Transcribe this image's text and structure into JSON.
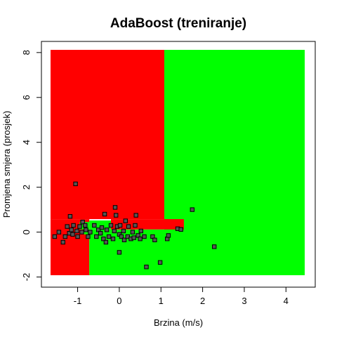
{
  "chart_data": {
    "type": "scatter",
    "title": "AdaBoost (treniranje)",
    "xlabel": "Brzina (m/s)",
    "ylabel": "Promjena smjera (prosjek)",
    "xlim": [
      -1.65,
      4.45
    ],
    "ylim": [
      -1.92,
      8.12
    ],
    "x_ticks": [
      -1,
      0,
      1,
      2,
      3,
      4
    ],
    "y_ticks": [
      -2,
      0,
      2,
      4,
      6,
      8
    ],
    "colors": {
      "region_red": "#ff0000",
      "region_green": "#00ff00",
      "point_fill": "#555555",
      "point_edge": "#000000"
    },
    "decision_regions": [
      {
        "class": "red",
        "x": [
          -1.65,
          1.08
        ],
        "y": [
          0.58,
          8.12
        ]
      },
      {
        "class": "green",
        "x": [
          1.08,
          4.45
        ],
        "y": [
          -1.92,
          8.12
        ]
      },
      {
        "class": "red",
        "x": [
          -1.65,
          -0.72
        ],
        "y": [
          -1.92,
          0.58
        ]
      },
      {
        "class": "green",
        "x": [
          -0.72,
          1.08
        ],
        "y": [
          -1.92,
          0.12
        ]
      },
      {
        "class": "green",
        "x": [
          -0.95,
          -0.72
        ],
        "y": [
          0.12,
          0.45
        ]
      },
      {
        "class": "green",
        "x": [
          -0.72,
          -0.2
        ],
        "y": [
          0.12,
          0.52
        ]
      },
      {
        "class": "red",
        "x": [
          -0.2,
          1.08
        ],
        "y": [
          0.12,
          0.58
        ]
      },
      {
        "class": "red",
        "x": [
          1.08,
          1.55
        ],
        "y": [
          0.12,
          0.58
        ]
      },
      {
        "class": "green",
        "x": [
          -0.85,
          -0.72
        ],
        "y": [
          -0.1,
          0.12
        ]
      }
    ],
    "points": [
      {
        "x": -1.55,
        "y": -0.2
      },
      {
        "x": -1.45,
        "y": 0.0
      },
      {
        "x": -1.35,
        "y": -0.45
      },
      {
        "x": -1.3,
        "y": -0.2
      },
      {
        "x": -1.25,
        "y": 0.25
      },
      {
        "x": -1.2,
        "y": -0.05
      },
      {
        "x": -1.18,
        "y": 0.7
      },
      {
        "x": -1.15,
        "y": 0.1
      },
      {
        "x": -1.12,
        "y": -0.1
      },
      {
        "x": -1.1,
        "y": 0.3
      },
      {
        "x": -1.05,
        "y": 2.15
      },
      {
        "x": -1.02,
        "y": 0.05
      },
      {
        "x": -1.0,
        "y": -0.2
      },
      {
        "x": -0.95,
        "y": 0.25
      },
      {
        "x": -0.9,
        "y": 0.0
      },
      {
        "x": -0.88,
        "y": 0.45
      },
      {
        "x": -0.82,
        "y": 0.3
      },
      {
        "x": -0.8,
        "y": 0.1
      },
      {
        "x": -0.75,
        "y": -0.2
      },
      {
        "x": -0.7,
        "y": 0.0
      },
      {
        "x": -0.6,
        "y": 0.3
      },
      {
        "x": -0.55,
        "y": -0.2
      },
      {
        "x": -0.5,
        "y": 0.1
      },
      {
        "x": -0.45,
        "y": -0.05
      },
      {
        "x": -0.42,
        "y": 0.2
      },
      {
        "x": -0.38,
        "y": -0.3
      },
      {
        "x": -0.35,
        "y": 0.8
      },
      {
        "x": -0.32,
        "y": -0.45
      },
      {
        "x": -0.3,
        "y": 0.1
      },
      {
        "x": -0.25,
        "y": -0.2
      },
      {
        "x": -0.2,
        "y": 0.3
      },
      {
        "x": -0.15,
        "y": -0.3
      },
      {
        "x": -0.12,
        "y": 0.05
      },
      {
        "x": -0.1,
        "y": 1.1
      },
      {
        "x": -0.08,
        "y": 0.75
      },
      {
        "x": -0.05,
        "y": 0.25
      },
      {
        "x": 0.0,
        "y": -0.1
      },
      {
        "x": 0.0,
        "y": -0.9
      },
      {
        "x": 0.02,
        "y": 0.3
      },
      {
        "x": 0.05,
        "y": -0.2
      },
      {
        "x": 0.1,
        "y": 0.05
      },
      {
        "x": 0.12,
        "y": -0.35
      },
      {
        "x": 0.15,
        "y": 0.5
      },
      {
        "x": 0.2,
        "y": -0.2
      },
      {
        "x": 0.22,
        "y": 0.25
      },
      {
        "x": 0.28,
        "y": -0.3
      },
      {
        "x": 0.32,
        "y": 0.0
      },
      {
        "x": 0.35,
        "y": -0.25
      },
      {
        "x": 0.38,
        "y": 0.3
      },
      {
        "x": 0.4,
        "y": 0.75
      },
      {
        "x": 0.45,
        "y": -0.15
      },
      {
        "x": 0.5,
        "y": -0.3
      },
      {
        "x": 0.52,
        "y": 0.05
      },
      {
        "x": 0.6,
        "y": -0.2
      },
      {
        "x": 0.65,
        "y": -1.55
      },
      {
        "x": 0.8,
        "y": -0.2
      },
      {
        "x": 0.85,
        "y": -0.35
      },
      {
        "x": 0.98,
        "y": -1.35
      },
      {
        "x": 1.15,
        "y": -0.3
      },
      {
        "x": 1.18,
        "y": -0.15
      },
      {
        "x": 1.4,
        "y": 0.15
      },
      {
        "x": 1.48,
        "y": 0.12
      },
      {
        "x": 1.75,
        "y": 1.0
      },
      {
        "x": 2.28,
        "y": -0.65
      }
    ]
  }
}
